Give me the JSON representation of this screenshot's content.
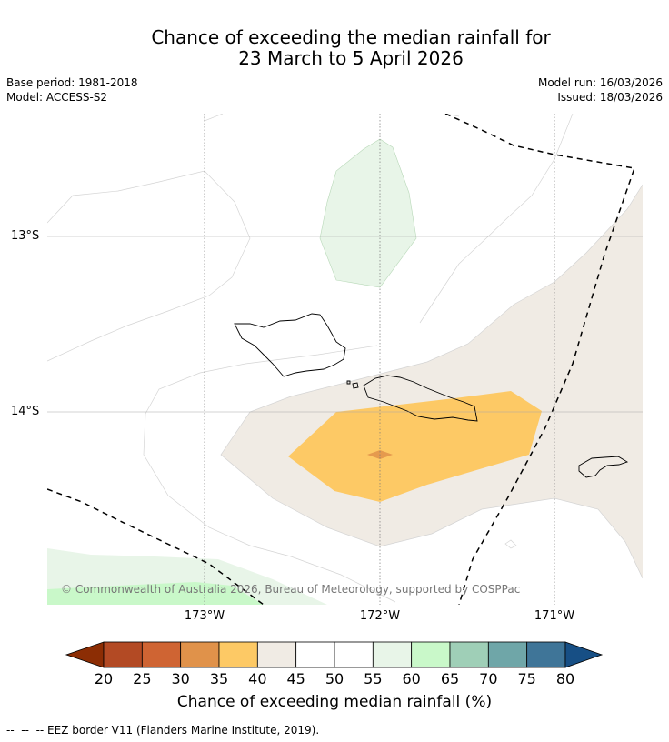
{
  "title": {
    "line1": "Chance of exceeding the median rainfall for",
    "line2": "23 March to 5 April 2026"
  },
  "meta": {
    "base_period": "Base period: 1981-2018",
    "model": "Model: ACCESS-S2",
    "model_run": "Model run: 16/03/2026",
    "issued": "Issued: 18/03/2026"
  },
  "map": {
    "lat_labels": [
      "13°S",
      "14°S"
    ],
    "lon_labels": [
      "173°W",
      "172°W",
      "171°W"
    ],
    "copyright": "© Commonwealth of Australia 2026, Bureau of Meteorology, supported by COSPPac"
  },
  "colorbar": {
    "ticks": [
      "20",
      "25",
      "30",
      "35",
      "40",
      "45",
      "50",
      "55",
      "60",
      "65",
      "70",
      "75",
      "80"
    ],
    "colors": {
      "under": "#8c2d04",
      "bins": [
        "#b34a24",
        "#cf6433",
        "#e0924a",
        "#fdc965",
        "#f0ebe4",
        "#ffffff",
        "#ffffff",
        "#e8f5e8",
        "#c9f8c9",
        "#9fcfb7",
        "#6fa6a8",
        "#3f7598"
      ],
      "over": "#174f85"
    },
    "label": "Chance of exceeding median rainfall (%)"
  },
  "footnote": "--  --  -- EEZ border V11 (Flanders Marine Institute, 2019)."
}
